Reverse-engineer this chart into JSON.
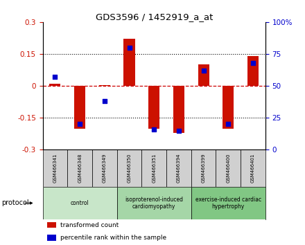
{
  "title": "GDS3596 / 1452919_a_at",
  "samples": [
    "GSM466341",
    "GSM466348",
    "GSM466349",
    "GSM466350",
    "GSM466351",
    "GSM466394",
    "GSM466399",
    "GSM466400",
    "GSM466401"
  ],
  "transformed_count": [
    0.01,
    -0.2,
    0.005,
    0.22,
    -0.2,
    -0.22,
    0.1,
    -0.2,
    0.14
  ],
  "percentile_rank": [
    57,
    20,
    38,
    80,
    16,
    15,
    62,
    20,
    68
  ],
  "ylim_left": [
    -0.3,
    0.3
  ],
  "ylim_right": [
    0,
    100
  ],
  "yticks_left": [
    -0.3,
    -0.15,
    0,
    0.15,
    0.3
  ],
  "yticks_right": [
    0,
    25,
    50,
    75,
    100
  ],
  "ytick_labels_left": [
    "-0.3",
    "-0.15",
    "0",
    "0.15",
    "0.3"
  ],
  "ytick_labels_right": [
    "0",
    "25",
    "50",
    "75",
    "100%"
  ],
  "groups": [
    {
      "label": "control",
      "indices": [
        0,
        1,
        2
      ],
      "color": "#c8e6c9"
    },
    {
      "label": "isoproterenol-induced\ncardiomyopathy",
      "indices": [
        3,
        4,
        5
      ],
      "color": "#a5d6a7"
    },
    {
      "label": "exercise-induced cardiac\nhypertrophy",
      "indices": [
        6,
        7,
        8
      ],
      "color": "#81c784"
    }
  ],
  "bar_color": "#cc1100",
  "dot_color": "#0000cc",
  "bar_width": 0.45,
  "legend_items": [
    "transformed count",
    "percentile rank within the sample"
  ],
  "legend_colors": [
    "#cc1100",
    "#0000cc"
  ],
  "protocol_label": "protocol",
  "zero_line_color": "#cc0000",
  "sample_cell_color": "#d0d0d0"
}
